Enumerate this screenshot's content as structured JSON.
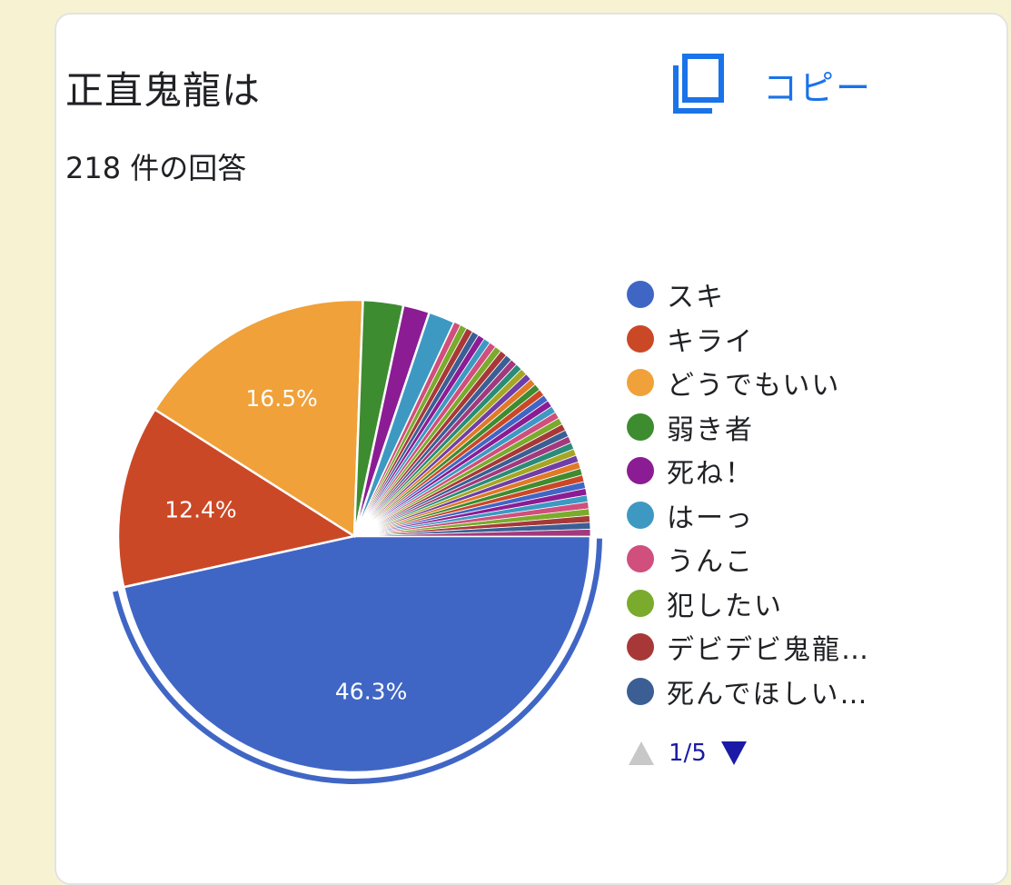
{
  "title": "正直鬼龍は",
  "subtitle": "218 件の回答",
  "copy_label": "コピー",
  "pager_label": "1/5",
  "chart_data": {
    "type": "pie",
    "total_responses": 218,
    "slices": [
      {
        "label": "スキ",
        "value": 46.3,
        "color": "#4066c5",
        "show_pct": "46.3%"
      },
      {
        "label": "キライ",
        "value": 12.4,
        "color": "#cb4827",
        "show_pct": "12.4%"
      },
      {
        "label": "どうでもいい",
        "value": 16.5,
        "color": "#f0a13a",
        "show_pct": "16.5%"
      },
      {
        "label": "弱き者",
        "value": 2.75,
        "color": "#3e8c30",
        "show_pct": ""
      },
      {
        "label": "死ね！",
        "value": 1.8,
        "color": "#8c1c94",
        "show_pct": ""
      },
      {
        "label": "はーっ",
        "value": 1.8,
        "color": "#3d99c2",
        "show_pct": ""
      },
      {
        "label": "うんこ",
        "value": 0.46,
        "color": "#d04f7c",
        "show_pct": ""
      },
      {
        "label": "犯したい",
        "value": 0.46,
        "color": "#7aab2c",
        "show_pct": ""
      },
      {
        "label": "デビデビ鬼龍…",
        "value": 0.46,
        "color": "#a83838",
        "show_pct": ""
      },
      {
        "label": "死んでほしい…",
        "value": 0.46,
        "color": "#3b5f94",
        "show_pct": ""
      }
    ],
    "other_count": 35,
    "other_value": 0.46,
    "other_colors": [
      "#8c1c94",
      "#3d99c2",
      "#d04f7c",
      "#7aab2c",
      "#a83838",
      "#3b5f94",
      "#a2397e",
      "#2a8c78",
      "#a6a624",
      "#6f3ea6",
      "#e07a26",
      "#3e8c30",
      "#cb4827",
      "#4066c5"
    ],
    "highlighted": "スキ"
  }
}
